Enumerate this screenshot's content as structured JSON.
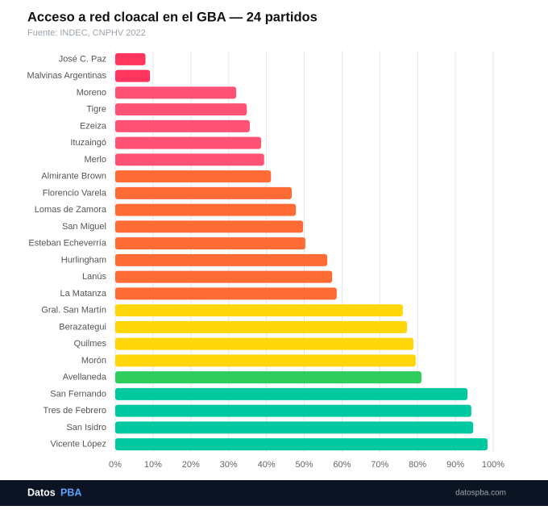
{
  "chart_data": {
    "type": "hbar",
    "title": "Acceso a red cloacal en el GBA — 24 partidos",
    "subtitle": "Fuente: INDEC, CNPHV 2022",
    "categories": [
      "José C. Paz",
      "Malvinas Argentinas",
      "Moreno",
      "Tigre",
      "Ezeiza",
      "Ituzaingó",
      "Merlo",
      "Almirante Brown",
      "Florencio Varela",
      "Lomas de Zamora",
      "San Miguel",
      "Esteban Echeverría",
      "Hurlingham",
      "Lanús",
      "La Matanza",
      "Gral. San Martín",
      "Berazategui",
      "Quilmes",
      "Morón",
      "Avellaneda",
      "San Fernando",
      "Tres de Febrero",
      "San Isidro",
      "Vicente López"
    ],
    "values": [
      8,
      9.2,
      32,
      34.8,
      35.6,
      38.6,
      39.4,
      41.2,
      46.7,
      47.8,
      49.7,
      50.3,
      56.1,
      57.4,
      58.6,
      76.1,
      77.2,
      78.9,
      79.5,
      81,
      93.2,
      94.2,
      94.7,
      98.5
    ],
    "colors": [
      "#ff3560",
      "#ff3560",
      "#ff5274",
      "#ff5274",
      "#ff5274",
      "#ff5274",
      "#ff5274",
      "#ff6b35",
      "#ff6b35",
      "#ff6b35",
      "#ff6b35",
      "#ff6b35",
      "#ff6b35",
      "#ff6b35",
      "#ff6b35",
      "#ffd60a",
      "#ffd60a",
      "#ffd60a",
      "#ffd60a",
      "#2ecc5a",
      "#00c9a0",
      "#00c9a0",
      "#00c9a0",
      "#00c9a0"
    ],
    "xlim": [
      0,
      100
    ],
    "xticks": [
      {
        "value": 0,
        "label": "0%"
      },
      {
        "value": 10,
        "label": "10%"
      },
      {
        "value": 20,
        "label": "20%"
      },
      {
        "value": 30,
        "label": "30%"
      },
      {
        "value": 40,
        "label": "40%"
      },
      {
        "value": 50,
        "label": "50%"
      },
      {
        "value": 60,
        "label": "60%"
      },
      {
        "value": 70,
        "label": "70%"
      },
      {
        "value": 80,
        "label": "80%"
      },
      {
        "value": 90,
        "label": "90%"
      },
      {
        "value": 100,
        "label": "100%"
      }
    ],
    "grid": true
  },
  "footer": {
    "brand": "Datos",
    "brand_accent": "PBA",
    "url": "datospba.com"
  }
}
